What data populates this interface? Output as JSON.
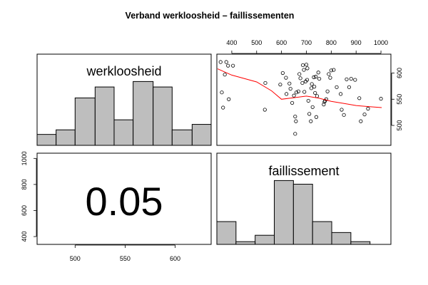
{
  "chart_data": {
    "type": "scatter-matrix",
    "title": "Verband werkloosheid – faillissementen",
    "variables": [
      "werkloosheid",
      "faillissement"
    ],
    "correlation_label": "0.05",
    "werkloosheid_axis": {
      "range": [
        462,
        636
      ],
      "ticks": [
        500,
        550,
        600
      ]
    },
    "faillissement_axis": {
      "range": [
        340,
        1040
      ],
      "ticks": [
        400,
        600,
        800,
        1000
      ],
      "top_ticks": [
        400,
        500,
        600,
        700,
        800,
        900,
        1000
      ]
    },
    "werkloosheid_right_ticks": [
      500,
      550,
      600
    ],
    "hist_werkloosheid": {
      "breaks": [
        462,
        481,
        500,
        520,
        539,
        558,
        578,
        597,
        617,
        636
      ],
      "heights": [
        0.12,
        0.17,
        0.52,
        0.64,
        0.28,
        0.7,
        0.64,
        0.17,
        0.23
      ]
    },
    "hist_faillissement": {
      "breaks": [
        340,
        417,
        494,
        571,
        648,
        725,
        802,
        879,
        956,
        1040
      ],
      "heights": [
        0.25,
        0.03,
        0.1,
        0.7,
        0.66,
        0.25,
        0.13,
        0.03,
        0
      ]
    },
    "scatter": {
      "x_variable": "faillissement",
      "y_variable": "werkloosheid",
      "points": [
        [
          355,
          621
        ],
        [
          378,
          621
        ],
        [
          372,
          597
        ],
        [
          385,
          614
        ],
        [
          360,
          563
        ],
        [
          365,
          534
        ],
        [
          388,
          550
        ],
        [
          405,
          614
        ],
        [
          535,
          581
        ],
        [
          533,
          530
        ],
        [
          595,
          578
        ],
        [
          605,
          600
        ],
        [
          618,
          591
        ],
        [
          620,
          560
        ],
        [
          632,
          580
        ],
        [
          636,
          570
        ],
        [
          643,
          543
        ],
        [
          650,
          557
        ],
        [
          655,
          517
        ],
        [
          658,
          508
        ],
        [
          655,
          484
        ],
        [
          660,
          563
        ],
        [
          668,
          565
        ],
        [
          672,
          598
        ],
        [
          676,
          590
        ],
        [
          684,
          581
        ],
        [
          686,
          615
        ],
        [
          690,
          606
        ],
        [
          692,
          564
        ],
        [
          697,
          584
        ],
        [
          700,
          616
        ],
        [
          703,
          587
        ],
        [
          704,
          609
        ],
        [
          708,
          547
        ],
        [
          712,
          522
        ],
        [
          718,
          508
        ],
        [
          720,
          571
        ],
        [
          722,
          579
        ],
        [
          725,
          535
        ],
        [
          730,
          592
        ],
        [
          732,
          574
        ],
        [
          735,
          562
        ],
        [
          738,
          593
        ],
        [
          740,
          516
        ],
        [
          743,
          556
        ],
        [
          748,
          601
        ],
        [
          752,
          589
        ],
        [
          770,
          540
        ],
        [
          773,
          545
        ],
        [
          775,
          547
        ],
        [
          780,
          550
        ],
        [
          785,
          565
        ],
        [
          790,
          598
        ],
        [
          796,
          591
        ],
        [
          800,
          605
        ],
        [
          810,
          606
        ],
        [
          822,
          573
        ],
        [
          838,
          560
        ],
        [
          842,
          530
        ],
        [
          851,
          520
        ],
        [
          862,
          588
        ],
        [
          872,
          573
        ],
        [
          880,
          589
        ],
        [
          896,
          587
        ],
        [
          913,
          552
        ],
        [
          919,
          508
        ],
        [
          934,
          521
        ],
        [
          948,
          532
        ],
        [
          1000,
          551
        ]
      ],
      "smooth_line": [
        [
          343,
          608
        ],
        [
          400,
          596
        ],
        [
          500,
          583
        ],
        [
          560,
          566
        ],
        [
          600,
          550
        ],
        [
          650,
          553
        ],
        [
          700,
          556
        ],
        [
          750,
          552
        ],
        [
          800,
          546
        ],
        [
          850,
          542
        ],
        [
          900,
          538
        ],
        [
          950,
          536
        ],
        [
          1003,
          534
        ]
      ],
      "smooth_color": "#ff0000",
      "point_color": "#000000"
    },
    "histogram_fill": "#bebebe"
  }
}
